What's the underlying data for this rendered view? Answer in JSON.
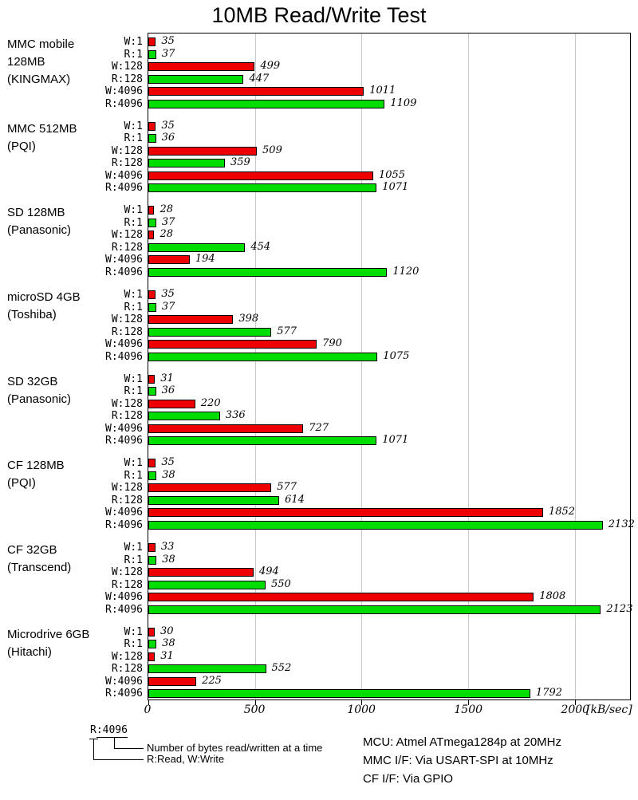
{
  "title": "10MB Read/Write Test",
  "chart_data": {
    "type": "bar",
    "orientation": "horizontal",
    "title": "10MB Read/Write Test",
    "xlabel": "[kB/sec]",
    "x_ticks": [
      0,
      500,
      1000,
      1500,
      2000
    ],
    "x_max": 2260,
    "grid": "vertical-major",
    "row_labels": [
      "W:1",
      "R:1",
      "W:128",
      "R:128",
      "W:4096",
      "R:4096"
    ],
    "write_color": "#ee0000",
    "read_color": "#00dd00",
    "grid_color": "#c9c9c9",
    "groups": [
      {
        "label_lines": [
          "MMC mobile",
          "128MB",
          "(KINGMAX)"
        ],
        "values": [
          35,
          37,
          499,
          447,
          1011,
          1109
        ]
      },
      {
        "label_lines": [
          "MMC 512MB",
          "(PQI)"
        ],
        "values": [
          35,
          36,
          509,
          359,
          1055,
          1071
        ]
      },
      {
        "label_lines": [
          "SD 128MB",
          "(Panasonic)"
        ],
        "values": [
          28,
          37,
          28,
          454,
          194,
          1120
        ]
      },
      {
        "label_lines": [
          "microSD 4GB",
          "(Toshiba)"
        ],
        "values": [
          35,
          37,
          398,
          577,
          790,
          1075
        ]
      },
      {
        "label_lines": [
          "SD 32GB",
          "(Panasonic)"
        ],
        "values": [
          31,
          36,
          220,
          336,
          727,
          1071
        ]
      },
      {
        "label_lines": [
          "CF 128MB",
          "(PQI)"
        ],
        "values": [
          35,
          38,
          577,
          614,
          1852,
          2132
        ]
      },
      {
        "label_lines": [
          "CF 32GB",
          "(Transcend)"
        ],
        "values": [
          33,
          38,
          494,
          550,
          1808,
          2123
        ]
      },
      {
        "label_lines": [
          "Microdrive 6GB",
          "(Hitachi)"
        ],
        "values": [
          30,
          38,
          31,
          552,
          225,
          1792
        ]
      }
    ]
  },
  "footer": {
    "legend": {
      "sample_prefix": "R",
      "sample_rest": ":4096",
      "note_bytes": "Number of bytes read/written at a time",
      "note_rw": "R:Read, W:Write"
    },
    "info_lines": [
      "MCU: Atmel ATmega1284p at 20MHz",
      "MMC I/F: Via USART-SPI at 10MHz",
      "CF I/F: Via GPIO"
    ]
  }
}
